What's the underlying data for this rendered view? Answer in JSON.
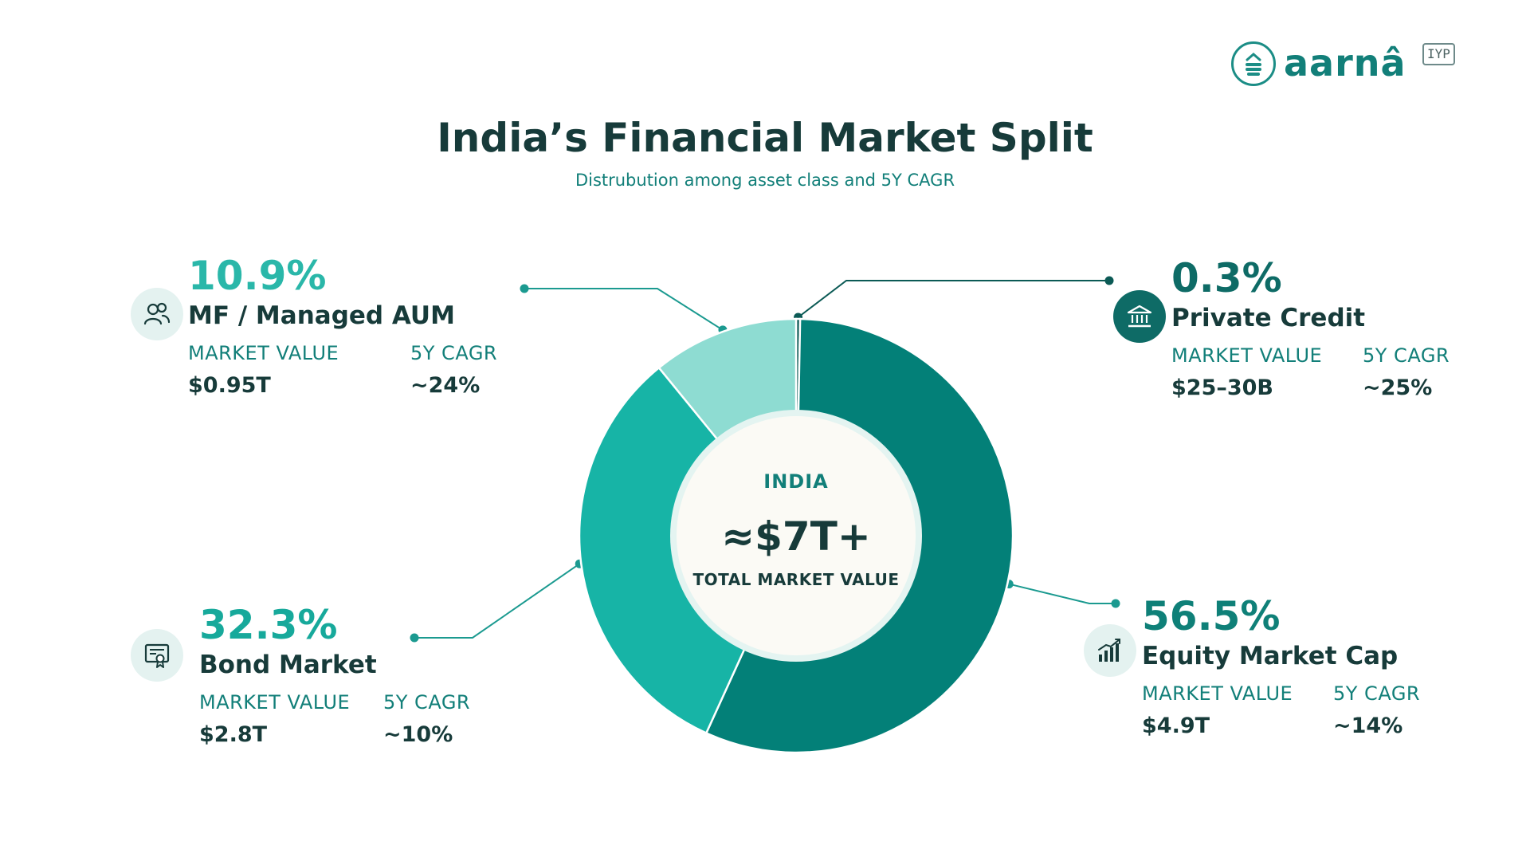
{
  "brand": {
    "name": "aarnâ",
    "badge": "IYP"
  },
  "title": "India’s Financial Market Split",
  "subtitle": "Distrubution among asset class and 5Y CAGR",
  "colors": {
    "equity": "#038078",
    "bond": "#17b4a6",
    "mf": "#8edcd2",
    "private_credit": "#0b5a55",
    "dark_text": "#173b3a",
    "accent_text": "#127f79",
    "center_fill": "#fbfaf5"
  },
  "center": {
    "top": "INDIA",
    "value": "≈$7T+",
    "bottom": "TOTAL MARKET VALUE"
  },
  "chart_data": {
    "type": "pie",
    "variant": "donut",
    "title": "India’s Financial Market Split",
    "subtitle": "Distrubution among asset class and 5Y CAGR",
    "segments": [
      {
        "name": "Private Credit",
        "value": 0.3,
        "label": "0.3%",
        "market_value": "$25–30B",
        "cagr_5y": "~25%",
        "color": "#0b5a55",
        "icon": "bank-icon"
      },
      {
        "name": "Equity Market Cap",
        "value": 56.5,
        "label": "56.5%",
        "market_value": "$4.9T",
        "cagr_5y": "~14%",
        "color": "#038078",
        "icon": "bar-chart-growth-icon"
      },
      {
        "name": "Bond Market",
        "value": 32.3,
        "label": "32.3%",
        "market_value": "$2.8T",
        "cagr_5y": "~10%",
        "color": "#17b4a6",
        "icon": "certificate-icon"
      },
      {
        "name": "MF / Managed AUM",
        "value": 10.9,
        "label": "10.9%",
        "market_value": "$0.95T",
        "cagr_5y": "~24%",
        "color": "#8edcd2",
        "icon": "users-icon"
      }
    ],
    "legend": "callouts-around-chart"
  },
  "stat_labels": {
    "market_value": "MARKET VALUE",
    "cagr": "5Y CAGR"
  }
}
